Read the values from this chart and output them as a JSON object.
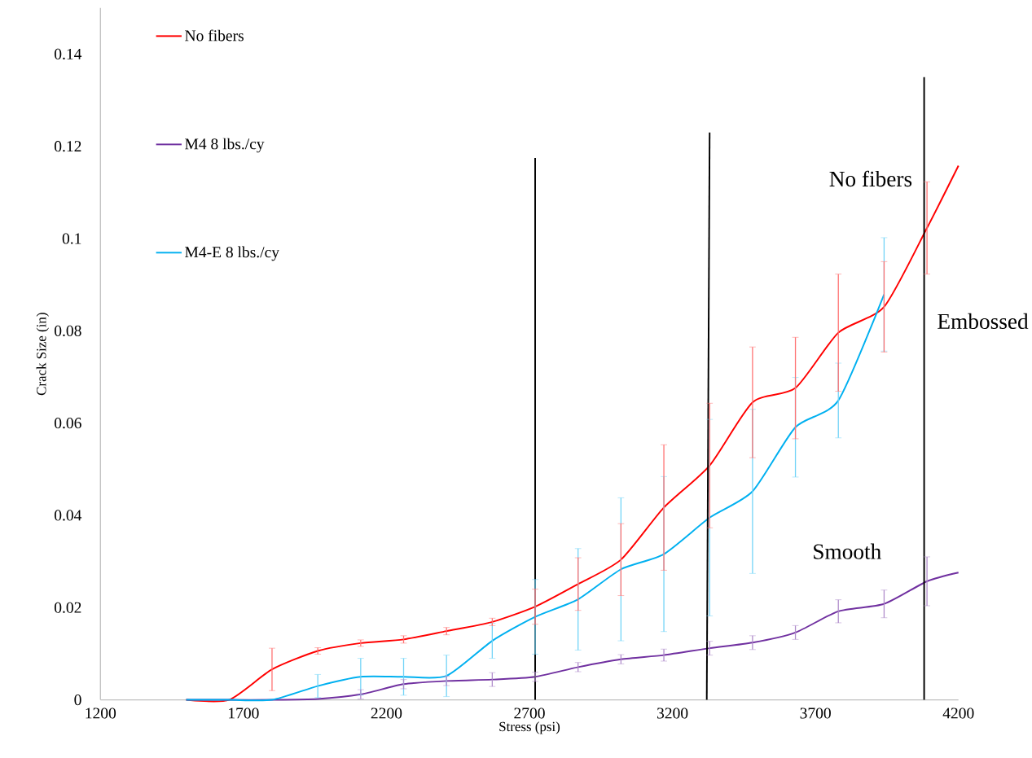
{
  "chart_data": {
    "type": "line",
    "xlabel": "Stress (psi)",
    "ylabel": "Crack Size (in)",
    "xlim": [
      1200,
      4200
    ],
    "ylim": [
      0,
      0.15
    ],
    "xticks": [
      1200,
      1700,
      2200,
      2700,
      3200,
      3700,
      4200
    ],
    "yticks": [
      0,
      0.02,
      0.04,
      0.06,
      0.08,
      0.1,
      0.12,
      0.14
    ],
    "grid": false,
    "legend": "top left",
    "annotations": [
      "No fibers",
      "Embossed",
      "Smooth"
    ],
    "series": [
      {
        "name": "No fibers",
        "color": "#ff0000",
        "x": [
          1500,
          1650,
          1800,
          1960,
          2110,
          2260,
          2410,
          2570,
          2720,
          2870,
          3020,
          3170,
          3330,
          3480,
          3630,
          3780,
          3940,
          4090,
          4200
        ],
        "values": [
          0,
          0,
          0.0066,
          0.0106,
          0.0123,
          0.0131,
          0.0149,
          0.0169,
          0.0202,
          0.0251,
          0.0304,
          0.0417,
          0.0508,
          0.0645,
          0.0676,
          0.0796,
          0.0852,
          0.1023,
          0.1158
        ],
        "errors": [
          null,
          null,
          0.0046,
          0.0007,
          0.0007,
          0.0008,
          0.0008,
          0.0008,
          0.0038,
          0.0057,
          0.0078,
          0.0136,
          0.0135,
          0.012,
          0.011,
          0.0127,
          0.0098,
          0.01,
          null
        ]
      },
      {
        "name": "M4 8 lbs./cy",
        "color": "#7030a0",
        "x": [
          1500,
          1650,
          1800,
          1960,
          2110,
          2260,
          2410,
          2570,
          2720,
          2870,
          3020,
          3170,
          3330,
          3480,
          3630,
          3780,
          3940,
          4090,
          4200
        ],
        "values": [
          0,
          0,
          0,
          0.0002,
          0.0012,
          0.0034,
          0.0041,
          0.0044,
          0.005,
          0.0071,
          0.0088,
          0.0097,
          0.0112,
          0.0124,
          0.0146,
          0.0192,
          0.0208,
          0.0257,
          0.0276
        ],
        "errors": [
          null,
          null,
          null,
          null,
          0.001,
          0.001,
          0.001,
          0.0015,
          0.001,
          0.001,
          0.001,
          0.0013,
          0.0015,
          0.0015,
          0.0015,
          0.0025,
          0.003,
          0.0053,
          null
        ]
      },
      {
        "name": "M4-E 8 lbs./cy",
        "color": "#00b0f0",
        "x": [
          1500,
          1650,
          1800,
          1960,
          2110,
          2260,
          2410,
          2570,
          2720,
          2870,
          3020,
          3170,
          3330,
          3480,
          3630,
          3780,
          3940
        ],
        "values": [
          0,
          0,
          0,
          0.003,
          0.005,
          0.005,
          0.0052,
          0.0128,
          0.018,
          0.0218,
          0.0283,
          0.0316,
          0.0395,
          0.0452,
          0.0591,
          0.0649,
          0.0879
        ],
        "errors": [
          null,
          null,
          null,
          0.0025,
          0.004,
          0.004,
          0.0045,
          0.0038,
          0.0081,
          0.011,
          0.0155,
          0.0168,
          0.0213,
          0.0178,
          0.0108,
          0.0081,
          0.0123
        ]
      },
      {
        "type": "line",
        "color": "#000000",
        "x": [
          2720,
          2720
        ],
        "values": [
          0,
          0.1175
        ]
      },
      {
        "type": "line",
        "color": "#000000",
        "x": [
          3320,
          3330
        ],
        "values": [
          0,
          0.123
        ]
      },
      {
        "type": "line",
        "color": "#000000",
        "x": [
          4080,
          4080
        ],
        "values": [
          0,
          0.135
        ]
      }
    ]
  }
}
